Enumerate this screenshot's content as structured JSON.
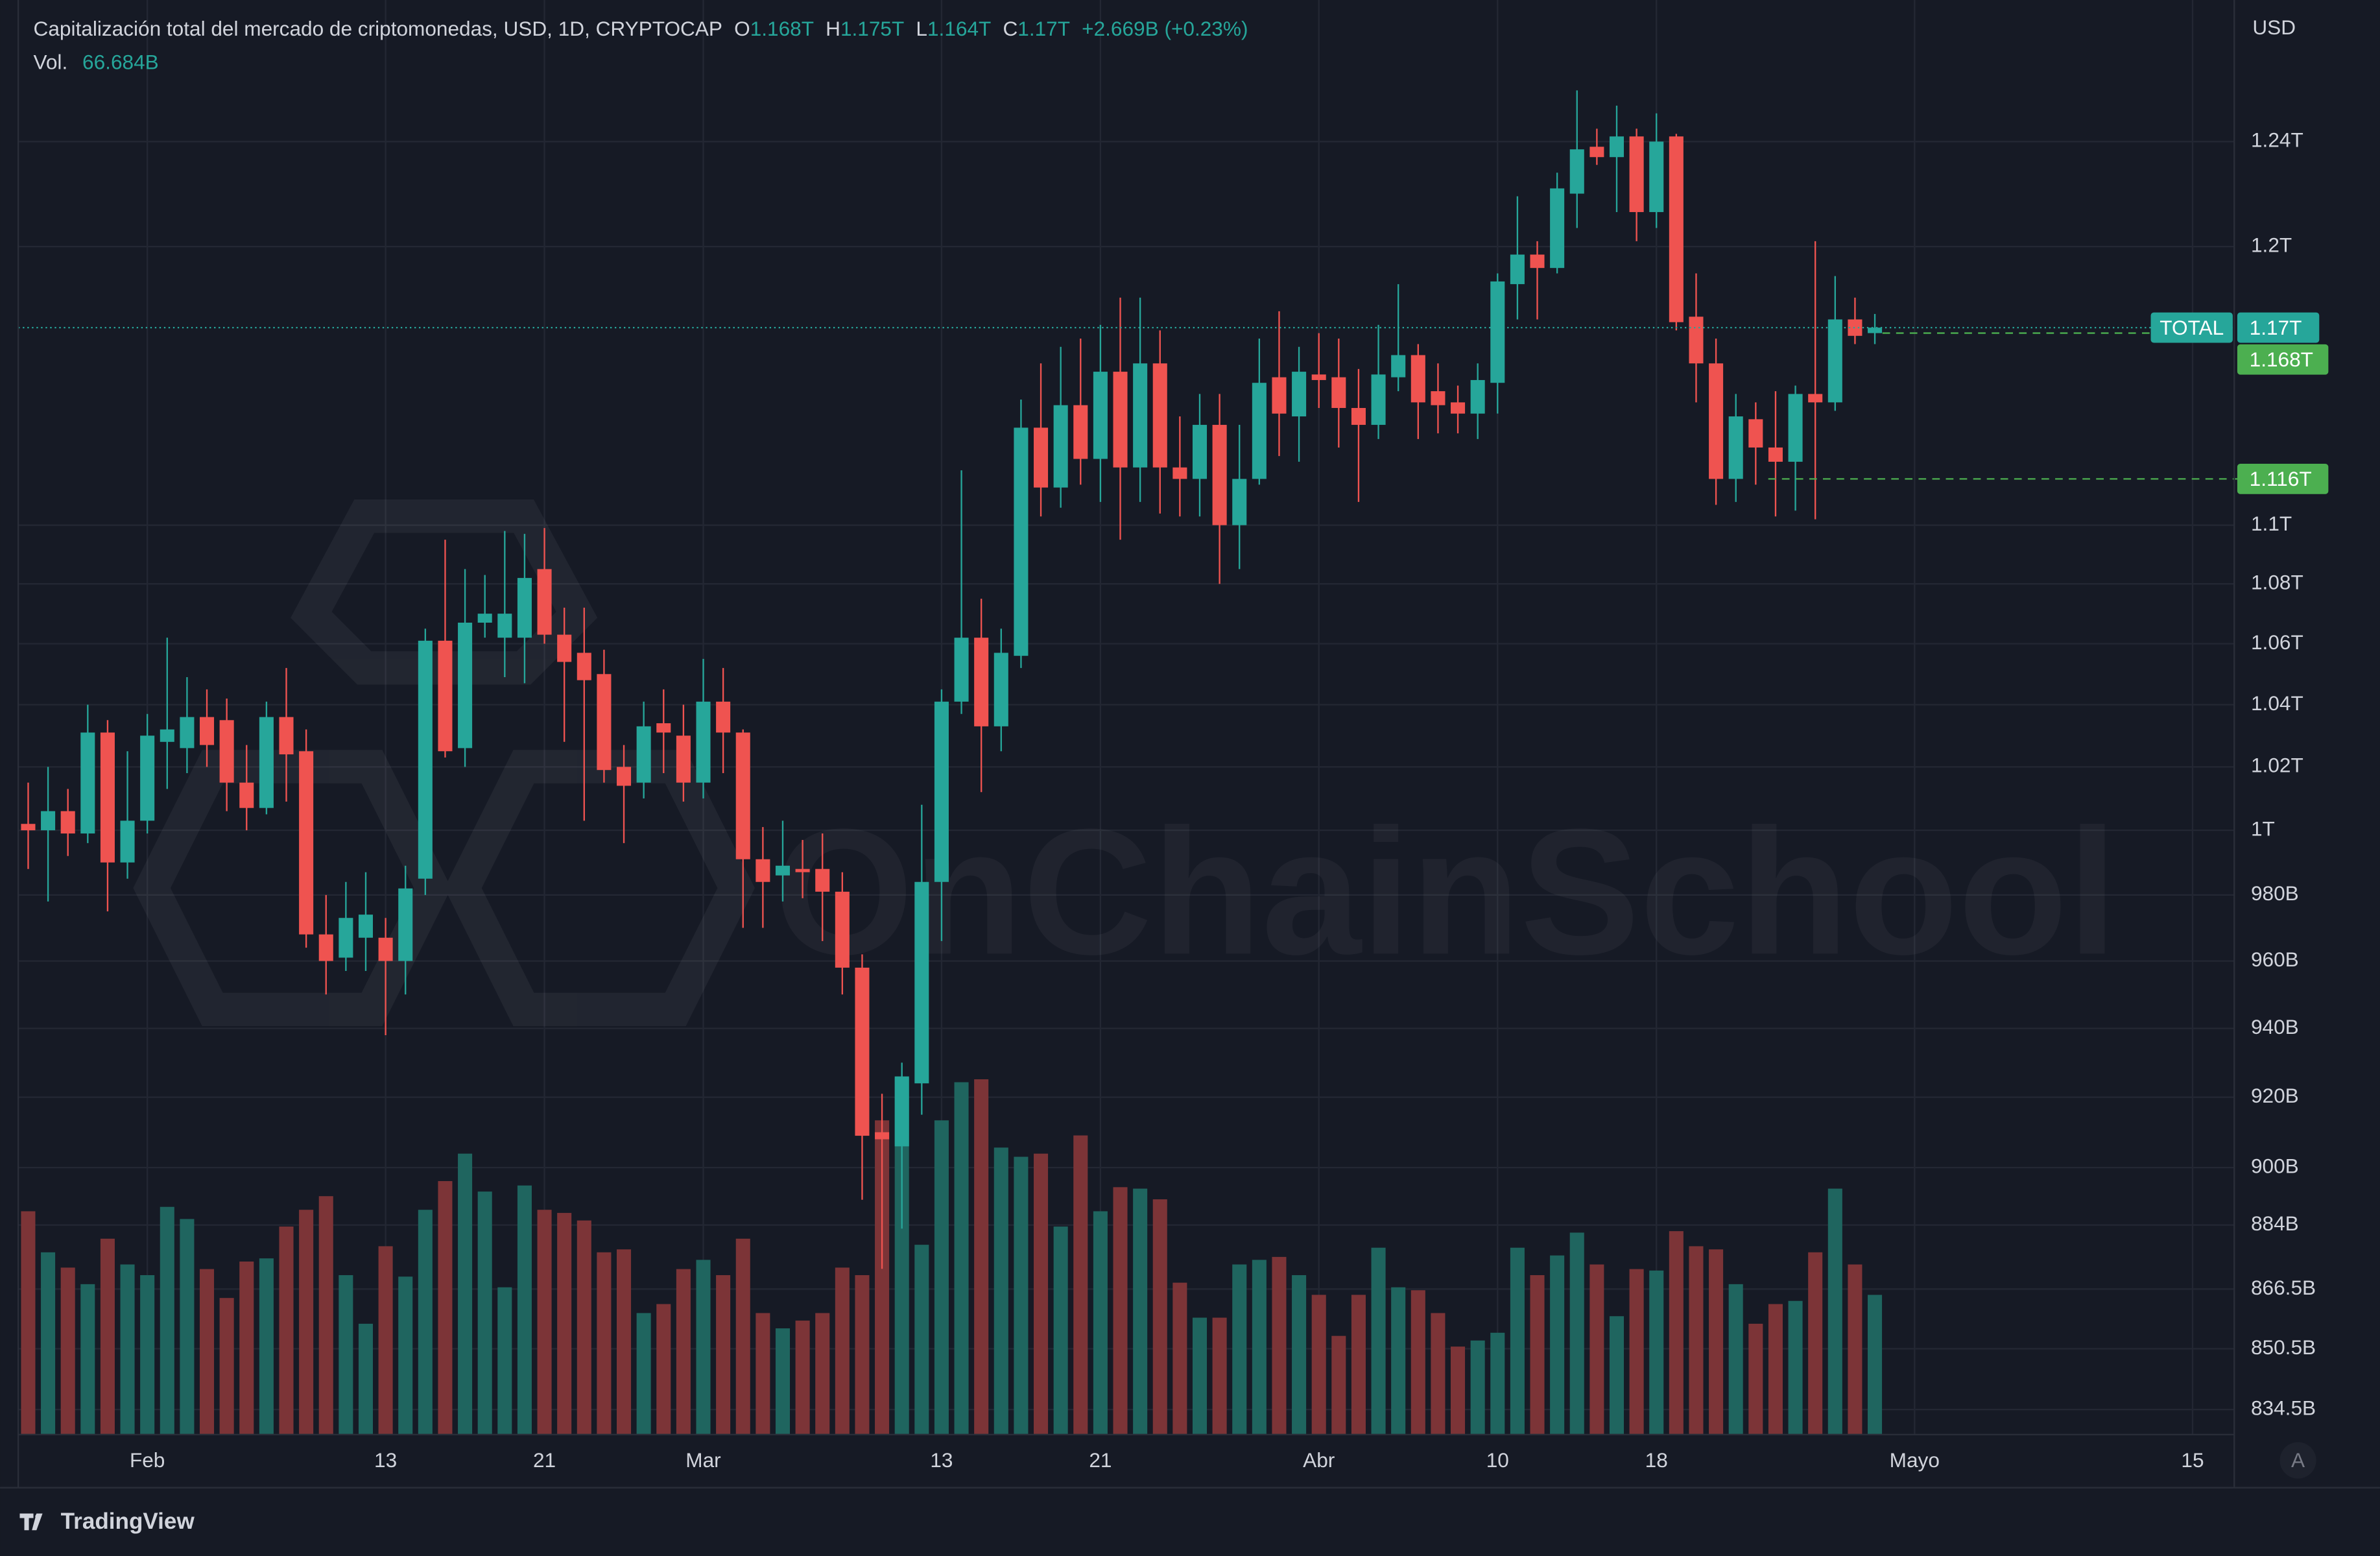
{
  "chart_data": {
    "type": "candlestick",
    "title": "Capitalización total del mercado de criptomonedas, USD, 1D, CRYPTOCAP",
    "ohlc_header": [
      {
        "key": "O",
        "value": "1.168T"
      },
      {
        "key": "H",
        "value": "1.175T"
      },
      {
        "key": "L",
        "value": "1.164T"
      },
      {
        "key": "C",
        "value": "1.17T"
      }
    ],
    "change": "+2.669B (+0.23%)",
    "volume_header": {
      "key": "Vol.",
      "value": "66.684B"
    },
    "currency": "USD",
    "watermark": "OnChainSchool",
    "branding": "TradingView",
    "auto_button": "A",
    "log_scale": true,
    "grid": true,
    "colors": {
      "up": "#26a69a",
      "down": "#ef5350",
      "volume_up": "#1f655f",
      "volume_down": "#7c3437",
      "price_line": "#4caf50"
    },
    "open": [
      1002,
      1000,
      1006,
      999,
      1031,
      990,
      1003,
      1028,
      1026,
      1036,
      1035,
      1015,
      1007,
      1036,
      1025,
      968,
      961,
      967,
      967,
      960,
      985,
      1061,
      1026,
      1067,
      1062,
      1062,
      1085,
      1063,
      1057,
      1050,
      1020,
      1015,
      1034,
      1030,
      1015,
      1041,
      1031,
      991,
      986,
      988,
      988,
      981,
      958,
      910,
      906,
      924,
      984,
      1041,
      1062,
      1033,
      1056,
      1134,
      1113,
      1142,
      1123,
      1154,
      1120,
      1157,
      1120,
      1116,
      1135,
      1100,
      1116,
      1152,
      1138,
      1153,
      1152,
      1141,
      1135,
      1152,
      1160,
      1147,
      1143,
      1139,
      1150,
      1186,
      1197,
      1192,
      1220,
      1238,
      1234,
      1242,
      1213,
      1242,
      1174,
      1157,
      1116,
      1137,
      1127,
      1122,
      1146,
      1143,
      1173,
      1168
    ],
    "high": [
      1015,
      1020,
      1013,
      1040,
      1035,
      1025,
      1037,
      1062,
      1049,
      1045,
      1042,
      1027,
      1041,
      1052,
      1032,
      980,
      984,
      987,
      973,
      989,
      1065,
      1095,
      1085,
      1083,
      1098,
      1097,
      1099,
      1072,
      1072,
      1058,
      1027,
      1041,
      1045,
      1040,
      1055,
      1052,
      1032,
      1001,
      1003,
      997,
      999,
      987,
      962,
      921,
      930,
      1008,
      1045,
      1119,
      1075,
      1065,
      1144,
      1157,
      1163,
      1166,
      1171,
      1181,
      1181,
      1169,
      1138,
      1146,
      1146,
      1135,
      1166,
      1176,
      1163,
      1168,
      1166,
      1155,
      1171,
      1186,
      1164,
      1157,
      1149,
      1157,
      1190,
      1219,
      1202,
      1228,
      1260,
      1245,
      1254,
      1245,
      1251,
      1243,
      1190,
      1166,
      1146,
      1143,
      1147,
      1149,
      1202,
      1189,
      1181,
      1175
    ],
    "low": [
      988,
      978,
      992,
      996,
      975,
      985,
      999,
      1013,
      1018,
      1020,
      1006,
      1000,
      1005,
      1009,
      964,
      950,
      957,
      957,
      938,
      950,
      980,
      1023,
      1020,
      1062,
      1049,
      1047,
      1060,
      1028,
      1003,
      1015,
      996,
      1010,
      1018,
      1009,
      1010,
      1018,
      970,
      970,
      978,
      979,
      966,
      950,
      891,
      872,
      883,
      915,
      966,
      1037,
      1012,
      1025,
      1052,
      1103,
      1106,
      1114,
      1108,
      1095,
      1108,
      1104,
      1103,
      1103,
      1080,
      1085,
      1114,
      1124,
      1122,
      1141,
      1127,
      1108,
      1130,
      1147,
      1130,
      1132,
      1132,
      1130,
      1139,
      1173,
      1173,
      1190,
      1207,
      1231,
      1213,
      1202,
      1207,
      1169,
      1143,
      1107,
      1108,
      1114,
      1103,
      1105,
      1102,
      1140,
      1164,
      1164
    ],
    "close": [
      1000,
      1006,
      999,
      1031,
      990,
      1003,
      1030,
      1032,
      1036,
      1027,
      1015,
      1007,
      1036,
      1024,
      968,
      960,
      973,
      974,
      960,
      982,
      1061,
      1025,
      1067,
      1070,
      1070,
      1082,
      1063,
      1054,
      1048,
      1019,
      1014,
      1033,
      1031,
      1015,
      1041,
      1031,
      991,
      984,
      989,
      987,
      981,
      958,
      909,
      908,
      926,
      984,
      1041,
      1062,
      1033,
      1057,
      1134,
      1113,
      1142,
      1123,
      1154,
      1120,
      1157,
      1120,
      1116,
      1135,
      1100,
      1116,
      1150,
      1139,
      1154,
      1151,
      1141,
      1135,
      1153,
      1160,
      1143,
      1142,
      1139,
      1151,
      1187,
      1197,
      1192,
      1222,
      1237,
      1234,
      1242,
      1213,
      1240,
      1172,
      1157,
      1116,
      1138,
      1127,
      1122,
      1146,
      1143,
      1173,
      1167,
      1170
    ],
    "volume": [
      106.6,
      87.0,
      79.7,
      71.8,
      93.5,
      81.2,
      76.1,
      108.7,
      102.9,
      79.0,
      65.2,
      82.6,
      84.1,
      99.3,
      107.3,
      113.8,
      76.1,
      52.9,
      89.9,
      75.4,
      107.3,
      121.0,
      134.1,
      116.0,
      70.3,
      118.9,
      107.3,
      105.8,
      102.2,
      87.0,
      88.4,
      58.0,
      62.3,
      79.0,
      83.4,
      76.1,
      93.5,
      58.0,
      50.7,
      54.4,
      58.0,
      79.7,
      76.1,
      150.0,
      170.3,
      90.6,
      150.0,
      168.2,
      169.6,
      137.0,
      132.6,
      134.1,
      99.3,
      142.8,
      106.6,
      118.1,
      117.4,
      112.3,
      72.5,
      55.8,
      55.8,
      81.2,
      83.4,
      84.8,
      76.1,
      66.7,
      47.1,
      66.7,
      89.2,
      70.3,
      68.9,
      58.0,
      42.0,
      44.9,
      48.6,
      89.2,
      76.1,
      85.5,
      96.4,
      81.2,
      56.5,
      79.0,
      78.3,
      97.1,
      89.9,
      88.4,
      71.8,
      52.9,
      62.3,
      63.8,
      87.0,
      117.4,
      81.2,
      66.684
    ],
    "ylim": [
      828,
      1293
    ],
    "yticks": [
      {
        "value": 1240,
        "label": "1.24T"
      },
      {
        "value": 1200,
        "label": "1.2T"
      },
      {
        "value": 1100,
        "label": "1.1T"
      },
      {
        "value": 1080,
        "label": "1.08T"
      },
      {
        "value": 1060,
        "label": "1.06T"
      },
      {
        "value": 1040,
        "label": "1.04T"
      },
      {
        "value": 1020,
        "label": "1.02T"
      },
      {
        "value": 1000,
        "label": "1T"
      },
      {
        "value": 980,
        "label": "980B"
      },
      {
        "value": 960,
        "label": "960B"
      },
      {
        "value": 940,
        "label": "940B"
      },
      {
        "value": 920,
        "label": "920B"
      },
      {
        "value": 900,
        "label": "900B"
      },
      {
        "value": 884,
        "label": "884B"
      },
      {
        "value": 866.5,
        "label": "866.5B"
      },
      {
        "value": 850.5,
        "label": "850.5B"
      },
      {
        "value": 834.5,
        "label": "834.5B"
      }
    ],
    "xlim": [
      -0.5,
      111.1
    ],
    "xticks": [
      {
        "value": 6,
        "label": "Feb"
      },
      {
        "value": 18,
        "label": "13"
      },
      {
        "value": 26,
        "label": "21"
      },
      {
        "value": 34,
        "label": "Mar"
      },
      {
        "value": 46,
        "label": "13"
      },
      {
        "value": 54,
        "label": "21"
      },
      {
        "value": 65,
        "label": "Abr"
      },
      {
        "value": 74,
        "label": "10"
      },
      {
        "value": 82,
        "label": "18"
      },
      {
        "value": 95,
        "label": "Mayo"
      },
      {
        "value": 109,
        "label": "15"
      }
    ],
    "last_price": {
      "name": "TOTAL",
      "value": 1170,
      "label": "1.17T"
    },
    "price_lines": [
      {
        "value": 1168,
        "label": "1.168T"
      },
      {
        "value": 1116,
        "label": "1.116T"
      }
    ]
  }
}
